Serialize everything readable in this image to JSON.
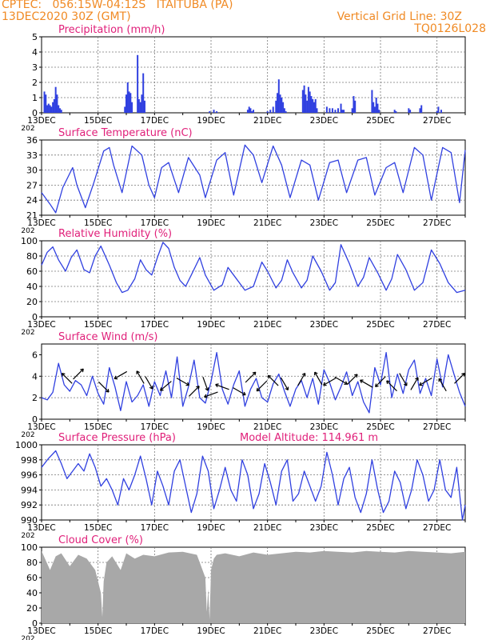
{
  "header": {
    "line1": "CPTEC:   056:15W-04:12S   ITAITUBA (PA)",
    "line2": "13DEC2020 30Z (GMT)",
    "right1": "Vertical Grid Line: 30Z",
    "right2": "TQ0126L028"
  },
  "colors": {
    "header": "#f08a24",
    "title": "#e0207a",
    "line": "#3040e0",
    "cloud": "#a8a8a8",
    "arrow": "#000000"
  },
  "x_ticks": [
    "13DEC",
    "15DEC",
    "17DEC",
    "19DEC",
    "21DEC",
    "23DEC",
    "25DEC",
    "27DEC"
  ],
  "year_fragment": "202",
  "chart_data": [
    {
      "id": "precip",
      "type": "bar",
      "title": "Precipitation (mm/h)",
      "ylim": [
        0,
        5
      ],
      "yticks": [
        0,
        1,
        2,
        3,
        4,
        5
      ],
      "x": [
        0.1,
        0.15,
        0.2,
        0.25,
        0.3,
        0.35,
        0.4,
        0.45,
        0.5,
        0.55,
        0.6,
        0.65,
        0.7,
        2.95,
        3.0,
        3.05,
        3.1,
        3.15,
        3.2,
        3.4,
        3.45,
        3.5,
        3.55,
        3.6,
        3.65,
        5.95,
        6.1,
        6.2,
        7.3,
        7.35,
        7.4,
        7.45,
        7.5,
        8.0,
        8.1,
        8.2,
        8.3,
        8.35,
        8.4,
        8.45,
        8.5,
        8.55,
        8.6,
        8.65,
        9.25,
        9.3,
        9.35,
        9.4,
        9.45,
        9.5,
        9.55,
        9.6,
        9.65,
        9.7,
        9.75,
        10.1,
        10.2,
        10.3,
        10.4,
        10.5,
        10.6,
        10.65,
        10.7,
        11.0,
        11.05,
        11.1,
        11.7,
        11.75,
        11.8,
        11.85,
        11.9,
        11.95,
        12.5,
        12.55,
        13.0,
        13.05,
        13.4,
        13.45,
        14.0,
        14.05,
        14.15
      ],
      "values": [
        1.4,
        1.2,
        0.5,
        0.6,
        0.5,
        0.4,
        0.7,
        0.9,
        1.7,
        1.2,
        0.5,
        0.3,
        0.2,
        0.4,
        1.2,
        2.0,
        1.4,
        1.3,
        0.7,
        3.8,
        0.9,
        0.7,
        1.2,
        2.6,
        0.8,
        0.1,
        0.2,
        0.1,
        0.2,
        0.4,
        0.3,
        0.1,
        0.2,
        0.1,
        0.2,
        0.4,
        0.8,
        1.3,
        2.2,
        1.2,
        1.0,
        0.7,
        0.3,
        0.1,
        1.5,
        1.8,
        1.2,
        0.8,
        1.7,
        1.4,
        1.1,
        0.9,
        0.7,
        0.9,
        0.3,
        0.4,
        0.3,
        0.3,
        0.2,
        0.3,
        0.6,
        0.2,
        0.2,
        0.3,
        1.1,
        0.8,
        1.5,
        0.7,
        0.4,
        1.0,
        0.6,
        0.2,
        0.2,
        0.1,
        0.3,
        0.2,
        0.3,
        0.5,
        0.1,
        0.4,
        0.2
      ]
    },
    {
      "id": "temp",
      "type": "line",
      "title": "Surface Temperature (nC)",
      "ylim": [
        21,
        36
      ],
      "yticks": [
        21,
        24,
        27,
        30,
        33,
        36
      ],
      "x": [
        0,
        0.3,
        0.5,
        0.75,
        1.1,
        1.25,
        1.55,
        1.85,
        2.2,
        2.4,
        2.55,
        2.85,
        3.2,
        3.55,
        3.8,
        4.0,
        4.25,
        4.5,
        4.85,
        5.2,
        5.6,
        5.8,
        6.2,
        6.5,
        6.8,
        7.2,
        7.5,
        7.8,
        8.2,
        8.5,
        8.8,
        9.2,
        9.5,
        9.8,
        10.2,
        10.5,
        10.8,
        11.2,
        11.5,
        11.8,
        12.2,
        12.5,
        12.8,
        13.2,
        13.5,
        13.8,
        14.2,
        14.5,
        14.8,
        15.0
      ],
      "values": [
        25.5,
        23.2,
        21.5,
        26.5,
        30.5,
        27.0,
        22.5,
        27.5,
        33.8,
        34.5,
        31.0,
        25.5,
        34.8,
        33.0,
        27.0,
        24.5,
        30.5,
        31.5,
        25.5,
        32.5,
        29.0,
        24.5,
        32.0,
        33.5,
        25.0,
        35.0,
        33.0,
        27.5,
        34.8,
        31.0,
        24.5,
        32.0,
        31.0,
        24.0,
        31.5,
        32.0,
        25.5,
        32.0,
        32.5,
        25.0,
        30.5,
        31.5,
        25.5,
        34.5,
        33.0,
        24.0,
        34.5,
        33.5,
        23.5,
        34.0
      ]
    },
    {
      "id": "rh",
      "type": "line",
      "title": "Relative Humidity (%)",
      "ylim": [
        0,
        100
      ],
      "yticks": [
        0,
        20,
        40,
        60,
        80,
        100
      ],
      "x": [
        0,
        0.2,
        0.4,
        0.6,
        0.85,
        1.05,
        1.25,
        1.5,
        1.7,
        1.9,
        2.1,
        2.4,
        2.65,
        2.85,
        3.05,
        3.3,
        3.5,
        3.7,
        3.9,
        4.1,
        4.3,
        4.5,
        4.7,
        4.9,
        5.1,
        5.3,
        5.6,
        5.8,
        6.1,
        6.4,
        6.6,
        6.8,
        7.2,
        7.5,
        7.8,
        8.0,
        8.3,
        8.5,
        8.7,
        8.9,
        9.2,
        9.4,
        9.6,
        9.9,
        10.2,
        10.4,
        10.6,
        10.9,
        11.2,
        11.4,
        11.6,
        11.9,
        12.2,
        12.4,
        12.6,
        12.9,
        13.2,
        13.5,
        13.8,
        14.1,
        14.4,
        14.7,
        15.0
      ],
      "values": [
        68,
        85,
        92,
        75,
        60,
        78,
        88,
        62,
        58,
        80,
        93,
        68,
        45,
        32,
        35,
        50,
        75,
        62,
        55,
        78,
        98,
        90,
        65,
        48,
        40,
        55,
        78,
        55,
        35,
        42,
        65,
        55,
        35,
        40,
        72,
        60,
        38,
        48,
        75,
        58,
        38,
        48,
        80,
        60,
        35,
        45,
        95,
        70,
        40,
        52,
        78,
        58,
        35,
        50,
        82,
        62,
        35,
        45,
        88,
        70,
        45,
        32,
        35
      ]
    },
    {
      "id": "wind",
      "type": "line",
      "title": "Surface Wind (m/s)",
      "ylim": [
        0,
        7
      ],
      "yticks": [
        0,
        2,
        4,
        6
      ],
      "x": [
        0,
        0.2,
        0.4,
        0.6,
        0.8,
        1.0,
        1.2,
        1.4,
        1.6,
        1.8,
        2.0,
        2.2,
        2.4,
        2.6,
        2.8,
        3.0,
        3.2,
        3.4,
        3.6,
        3.8,
        4.0,
        4.2,
        4.4,
        4.6,
        4.8,
        5.0,
        5.2,
        5.4,
        5.6,
        5.8,
        6.0,
        6.2,
        6.4,
        6.6,
        6.8,
        7.0,
        7.2,
        7.4,
        7.6,
        7.8,
        8.0,
        8.2,
        8.4,
        8.6,
        8.8,
        9.0,
        9.2,
        9.4,
        9.6,
        9.8,
        10.0,
        10.2,
        10.4,
        10.6,
        10.8,
        11.0,
        11.2,
        11.4,
        11.6,
        11.8,
        12.0,
        12.2,
        12.4,
        12.6,
        12.8,
        13.0,
        13.2,
        13.4,
        13.6,
        13.8,
        14.0,
        14.2,
        14.4,
        14.6,
        14.8,
        15.0
      ],
      "values": [
        2.0,
        1.8,
        2.5,
        5.2,
        3.2,
        2.6,
        3.6,
        3.2,
        2.2,
        4.0,
        2.4,
        1.4,
        4.8,
        3.0,
        0.8,
        3.5,
        1.6,
        2.2,
        3.2,
        1.2,
        3.5,
        2.2,
        4.5,
        2.0,
        5.8,
        1.2,
        3.0,
        5.5,
        2.0,
        1.5,
        3.5,
        6.2,
        2.8,
        1.4,
        3.2,
        4.5,
        1.2,
        2.8,
        3.8,
        2.0,
        1.6,
        3.3,
        4.2,
        2.6,
        1.2,
        2.8,
        3.6,
        2.0,
        3.8,
        1.4,
        4.6,
        3.4,
        1.8,
        3.0,
        4.4,
        2.2,
        3.5,
        1.6,
        0.6,
        4.8,
        3.2,
        6.2,
        2.0,
        4.2,
        2.4,
        4.6,
        5.5,
        2.4,
        3.8,
        2.2,
        5.6,
        3.0,
        6.0,
        4.2,
        2.5,
        1.2
      ],
      "arrows_x": [
        0.9,
        1.3,
        2.2,
        2.8,
        3.5,
        3.8,
        4.4,
        5.0,
        5.4,
        5.8,
        6.0,
        6.4,
        7.0,
        7.4,
        7.8,
        8.2,
        8.6,
        9.2,
        9.8,
        10.2,
        10.6,
        11.0,
        11.5,
        12.0,
        12.4,
        12.8,
        13.2,
        13.6,
        14.2,
        14.8
      ],
      "arrows_y": [
        3.8,
        4.2,
        3.0,
        4.1,
        3.9,
        3.4,
        3.1,
        3.5,
        2.6,
        3.3,
        2.3,
        3.0,
        2.6,
        3.9,
        3.1,
        3.6,
        3.3,
        3.7,
        3.8,
        3.5,
        3.6,
        3.7,
        3.3,
        3.5,
        3.1,
        3.7,
        3.3,
        3.5,
        3.2,
        3.8
      ],
      "arrows_dir": [
        135,
        45,
        315,
        210,
        120,
        300,
        220,
        330,
        45,
        290,
        200,
        160,
        330,
        45,
        225,
        135,
        300,
        60,
        120,
        210,
        330,
        45,
        150,
        225,
        135,
        300,
        60,
        210,
        120,
        45
      ]
    },
    {
      "id": "pres",
      "type": "line",
      "title": "Surface Pressure (hPa)",
      "subtitle": "Model Altitude: 114.961 m",
      "ylim": [
        990,
        1000
      ],
      "yticks": [
        990,
        992,
        994,
        996,
        998,
        1000
      ],
      "x": [
        0,
        0.25,
        0.5,
        0.7,
        0.9,
        1.1,
        1.3,
        1.5,
        1.7,
        1.9,
        2.1,
        2.3,
        2.5,
        2.7,
        2.9,
        3.1,
        3.3,
        3.5,
        3.7,
        3.9,
        4.1,
        4.3,
        4.5,
        4.7,
        4.9,
        5.1,
        5.3,
        5.5,
        5.7,
        5.9,
        6.1,
        6.3,
        6.5,
        6.7,
        6.9,
        7.1,
        7.3,
        7.5,
        7.7,
        7.9,
        8.1,
        8.3,
        8.5,
        8.7,
        8.9,
        9.1,
        9.3,
        9.5,
        9.7,
        9.9,
        10.1,
        10.3,
        10.5,
        10.7,
        10.9,
        11.1,
        11.3,
        11.5,
        11.7,
        11.9,
        12.1,
        12.3,
        12.5,
        12.7,
        12.9,
        13.1,
        13.3,
        13.5,
        13.7,
        13.9,
        14.1,
        14.3,
        14.5,
        14.7,
        14.9,
        15.0
      ],
      "values": [
        997,
        998.2,
        999.2,
        997.5,
        995.5,
        996.5,
        997.5,
        996.5,
        998.8,
        997,
        994.5,
        995.5,
        994,
        992,
        995.5,
        994,
        996,
        998.5,
        995.5,
        992,
        996.5,
        994.5,
        992,
        996.5,
        998,
        994.5,
        991,
        993.5,
        998.5,
        996.5,
        991.5,
        994,
        997,
        994,
        992.5,
        998,
        996,
        991.5,
        993.5,
        997.5,
        995,
        992,
        996.5,
        998,
        992.5,
        993.5,
        996.5,
        994.5,
        992.5,
        994.5,
        999,
        996,
        992,
        995.5,
        997,
        993,
        991,
        993.5,
        998,
        994,
        991,
        992.5,
        996.5,
        995,
        991.5,
        994,
        998,
        996,
        992.5,
        994,
        998,
        994,
        993,
        997,
        990,
        992
      ]
    },
    {
      "id": "cloud",
      "type": "area",
      "title": "Cloud Cover (%)",
      "ylim": [
        0,
        100
      ],
      "yticks": [
        0,
        20,
        40,
        60,
        80,
        100
      ],
      "x": [
        0,
        0.3,
        0.5,
        0.7,
        1.0,
        1.3,
        1.6,
        1.9,
        2.1,
        2.15,
        2.2,
        2.3,
        2.5,
        2.8,
        3.0,
        3.3,
        3.6,
        4.0,
        4.5,
        5.0,
        5.5,
        5.8,
        5.85,
        5.9,
        5.95,
        6.0,
        6.1,
        6.2,
        6.5,
        7.0,
        7.5,
        8.0,
        8.5,
        9.0,
        9.5,
        10.0,
        10.5,
        11.0,
        11.5,
        12.0,
        12.5,
        13.0,
        13.5,
        14.0,
        14.5,
        15.0
      ],
      "values": [
        95,
        70,
        88,
        92,
        75,
        90,
        85,
        70,
        40,
        8,
        55,
        80,
        88,
        70,
        92,
        85,
        90,
        88,
        93,
        94,
        90,
        60,
        15,
        45,
        5,
        70,
        85,
        90,
        92,
        88,
        93,
        90,
        92,
        94,
        93,
        95,
        94,
        93,
        95,
        94,
        93,
        95,
        94,
        93,
        92,
        94
      ]
    }
  ]
}
